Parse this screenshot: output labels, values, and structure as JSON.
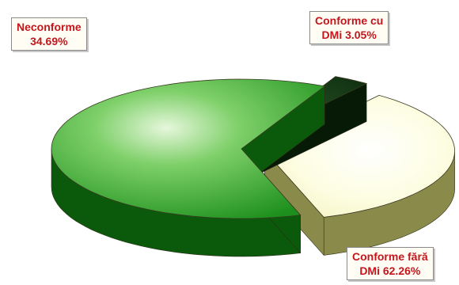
{
  "chart_data": {
    "type": "pie",
    "style": "3d-exploded",
    "slices": [
      {
        "key": "neconforme",
        "line1": "Neconforme",
        "line2": "34.69%",
        "value": 34.69,
        "top_color": "#fbfbd0",
        "side_color": "#8a8a4a"
      },
      {
        "key": "conforme-cu",
        "line1": "Conforme cu",
        "line2": "DMi 3.05%",
        "value": 3.05,
        "top_color": "#123a12",
        "side_color": "#061a06"
      },
      {
        "key": "conforme-fara",
        "line1": "Conforme fără",
        "line2": "DMi 62.26%",
        "value": 62.26,
        "top_color": "#23a323",
        "side_color": "#0b5a0b"
      }
    ],
    "label_color": "#c4161c",
    "legend": "none"
  }
}
